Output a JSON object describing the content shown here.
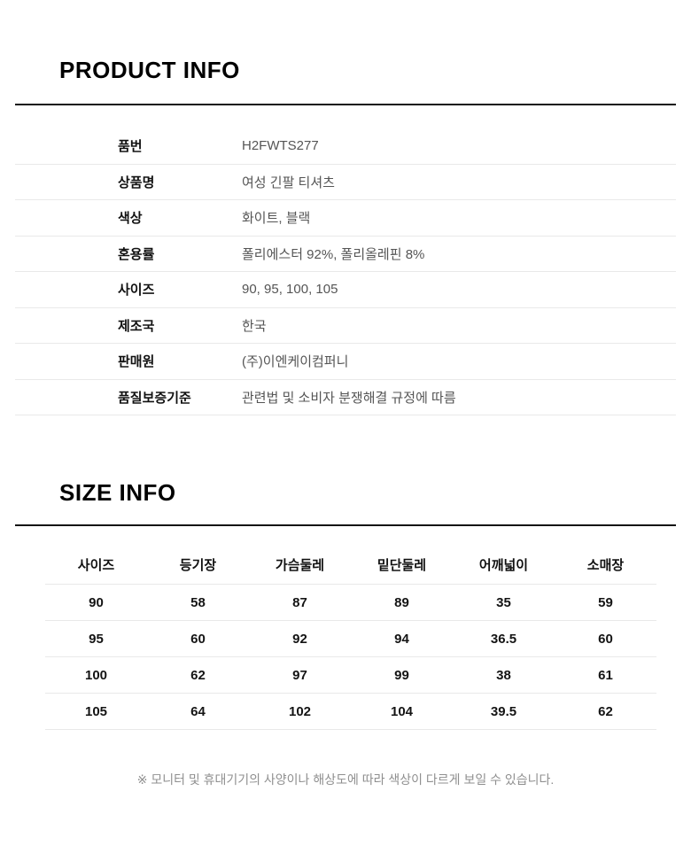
{
  "colors": {
    "background": "#ffffff",
    "heading": "#000000",
    "heavy_rule": "#131313",
    "row_separator": "#e9e9e9",
    "label_text": "#111111",
    "value_text": "#555555",
    "footer_text": "#8f8f8f"
  },
  "product_info": {
    "title": "PRODUCT INFO",
    "rows": [
      {
        "label": "품번",
        "value": "H2FWTS277"
      },
      {
        "label": "상품명",
        "value": "여성 긴팔 티셔츠"
      },
      {
        "label": "색상",
        "value": "화이트, 블랙"
      },
      {
        "label": "혼용률",
        "value": "폴리에스터 92%, 폴리올레핀 8%"
      },
      {
        "label": "사이즈",
        "value": "90, 95, 100, 105"
      },
      {
        "label": "제조국",
        "value": "한국"
      },
      {
        "label": "판매원",
        "value": "(주)이엔케이컴퍼니"
      },
      {
        "label": "품질보증기준",
        "value": "관련법 및 소비자 분쟁해결 규정에 따름"
      }
    ]
  },
  "size_info": {
    "title": "SIZE INFO",
    "columns": [
      "사이즈",
      "등기장",
      "가슴둘레",
      "밑단둘레",
      "어깨넓이",
      "소매장"
    ],
    "rows": [
      [
        "90",
        "58",
        "87",
        "89",
        "35",
        "59"
      ],
      [
        "95",
        "60",
        "92",
        "94",
        "36.5",
        "60"
      ],
      [
        "100",
        "62",
        "97",
        "99",
        "38",
        "61"
      ],
      [
        "105",
        "64",
        "102",
        "104",
        "39.5",
        "62"
      ]
    ]
  },
  "footer": {
    "note": "※ 모니터 및 휴대기기의 사양이나 해상도에 따라 색상이 다르게 보일 수 있습니다."
  }
}
